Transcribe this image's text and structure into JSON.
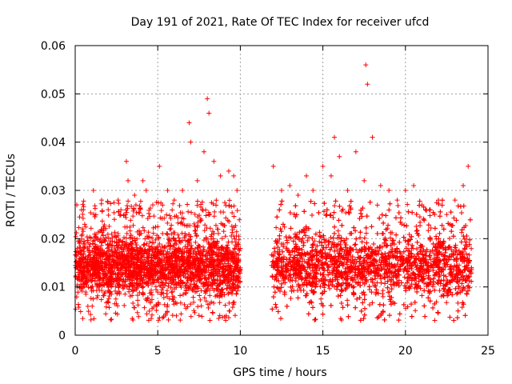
{
  "chart_data": {
    "type": "scatter",
    "title": "Day 191 of 2021, Rate Of TEC Index for receiver ufcd",
    "xlabel": "GPS time / hours",
    "ylabel": "ROTI / TECUs",
    "xlim": [
      0,
      25
    ],
    "ylim": [
      0,
      0.06
    ],
    "grid": true,
    "marker": "+",
    "color": "#ff0000",
    "x_ticks": [
      0,
      5,
      10,
      15,
      20,
      25
    ],
    "x_tick_labels": [
      "0",
      "5",
      "10",
      "15",
      "20",
      "25"
    ],
    "y_ticks": [
      0,
      0.01,
      0.02,
      0.03,
      0.04,
      0.05,
      0.06
    ],
    "y_tick_labels": [
      "0",
      "0.01",
      "0.02",
      "0.03",
      "0.04",
      "0.05",
      "0.06"
    ],
    "series": [
      {
        "name": "ROTI",
        "segments": [
          {
            "x_start": 0.0,
            "x_end": 10.0,
            "typical_range": [
              0.005,
              0.02
            ]
          },
          {
            "x_start": 11.9,
            "x_end": 24.0,
            "typical_range": [
              0.005,
              0.02
            ]
          }
        ],
        "x": [
          0.1,
          0.5,
          1.1,
          1.6,
          2.0,
          2.6,
          3.1,
          3.2,
          3.6,
          4.1,
          4.3,
          4.7,
          5.1,
          5.6,
          6.0,
          6.5,
          6.9,
          7.0,
          7.4,
          7.8,
          8.0,
          8.1,
          8.4,
          8.8,
          9.3,
          9.6,
          9.8,
          12.0,
          12.5,
          13.0,
          13.5,
          14.0,
          14.4,
          15.0,
          15.5,
          15.7,
          16.0,
          16.5,
          17.0,
          17.5,
          17.6,
          17.7,
          18.0,
          18.5,
          19.0,
          19.5,
          20.0,
          20.5,
          21.0,
          21.5,
          22.0,
          22.5,
          23.0,
          23.5,
          23.8
        ],
        "y": [
          0.027,
          0.026,
          0.03,
          0.028,
          0.026,
          0.028,
          0.036,
          0.032,
          0.029,
          0.032,
          0.03,
          0.027,
          0.035,
          0.03,
          0.028,
          0.03,
          0.044,
          0.04,
          0.032,
          0.038,
          0.049,
          0.046,
          0.036,
          0.033,
          0.034,
          0.033,
          0.03,
          0.035,
          0.03,
          0.031,
          0.029,
          0.033,
          0.03,
          0.035,
          0.033,
          0.041,
          0.037,
          0.03,
          0.038,
          0.032,
          0.056,
          0.052,
          0.041,
          0.031,
          0.03,
          0.028,
          0.03,
          0.031,
          0.027,
          0.026,
          0.028,
          0.025,
          0.028,
          0.031,
          0.035
        ]
      }
    ]
  }
}
